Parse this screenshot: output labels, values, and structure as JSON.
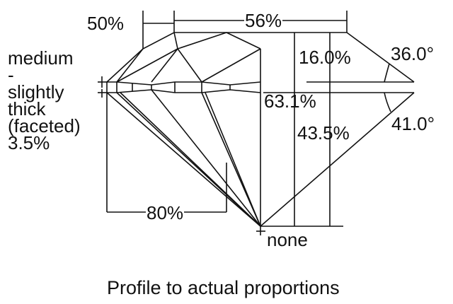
{
  "labels": {
    "crown_height": "50%",
    "table": "56%",
    "girdle": "medium\n-\nslightly\nthick\n(faceted)\n3.5%",
    "crown_depth": "16.0%",
    "crown_angle": "36.0°",
    "total_depth": "63.1%",
    "pavilion_depth": "43.5%",
    "pavilion_angle": "41.0°",
    "lower_half": "80%",
    "culet": "none"
  },
  "caption": "Profile to actual proportions"
}
